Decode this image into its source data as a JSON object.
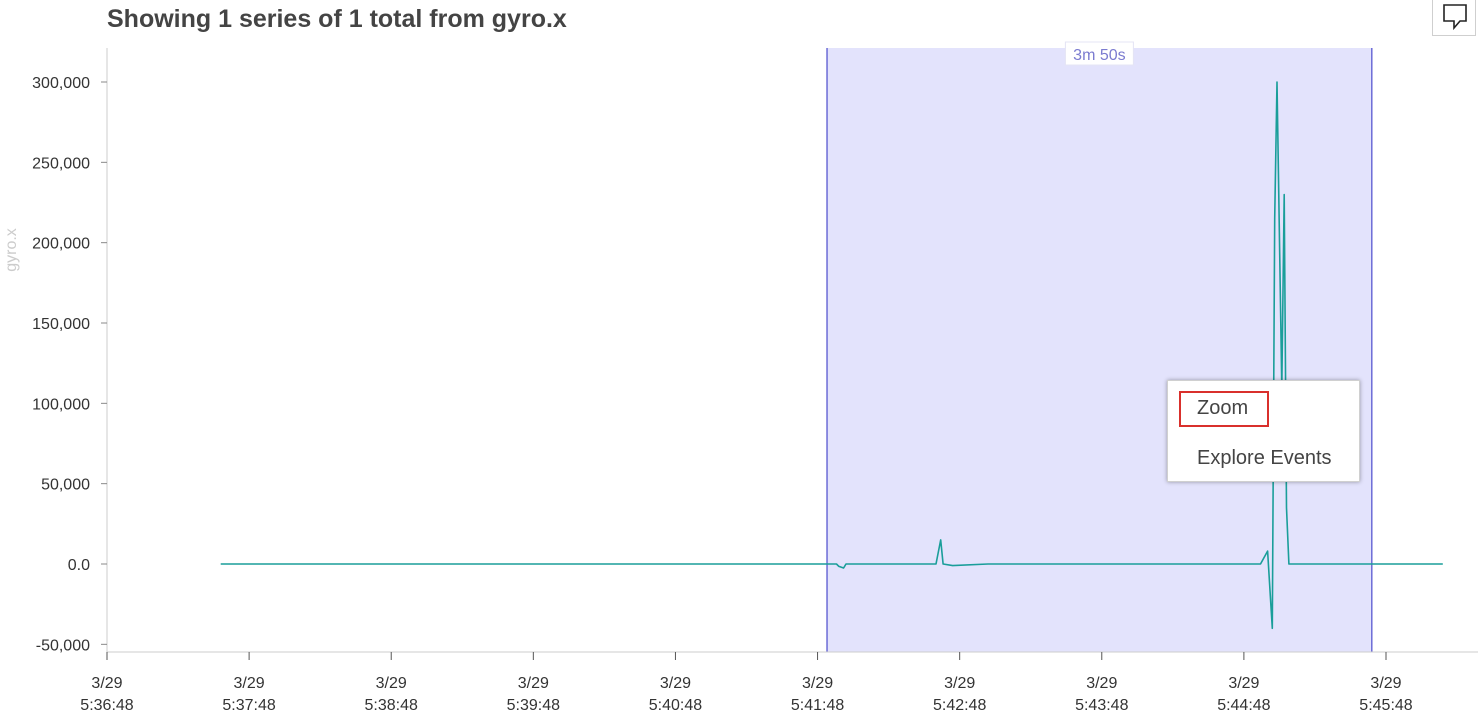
{
  "title": "Showing 1 series of 1 total from gyro.x",
  "icons": {
    "comment": "comment-icon"
  },
  "selection": {
    "label": "3m 50s",
    "start": "5:41:52",
    "end": "5:45:42"
  },
  "context_menu": {
    "items": [
      "Zoom",
      "Explore Events"
    ],
    "highlighted": "Zoom"
  },
  "colors": {
    "series": "#1a9e9a",
    "selection_fill": "#e3e3fc",
    "selection_border": "#6c6cd6",
    "highlight": "#d9302c"
  },
  "chart_data": {
    "type": "line",
    "title": "Showing 1 series of 1 total from gyro.x",
    "xlabel": "",
    "ylabel": "gyro.x",
    "ylim": [
      -55000,
      320000
    ],
    "yticks": [
      -50000,
      0,
      50000,
      100000,
      150000,
      200000,
      250000,
      300000
    ],
    "ytick_labels": [
      "-50,000",
      "0.0",
      "50,000",
      "100,000",
      "150,000",
      "200,000",
      "250,000",
      "300,000"
    ],
    "xlim": [
      "5:36:48",
      "5:46:28"
    ],
    "xticks": [
      "5:36:48",
      "5:37:48",
      "5:38:48",
      "5:39:48",
      "5:40:48",
      "5:41:48",
      "5:42:48",
      "5:43:48",
      "5:44:48",
      "5:45:48"
    ],
    "xtick_labels": [
      [
        "3/29",
        "5:36:48"
      ],
      [
        "3/29",
        "5:37:48"
      ],
      [
        "3/29",
        "5:38:48"
      ],
      [
        "3/29",
        "5:39:48"
      ],
      [
        "3/29",
        "5:40:48"
      ],
      [
        "3/29",
        "5:41:48"
      ],
      [
        "3/29",
        "5:42:48"
      ],
      [
        "3/29",
        "5:43:48"
      ],
      [
        "3/29",
        "5:44:48"
      ],
      [
        "3/29",
        "5:45:48"
      ]
    ],
    "grid": false,
    "series": [
      {
        "x": [
          "5:37:36",
          "5:38:00",
          "5:38:30",
          "5:39:00",
          "5:39:30",
          "5:40:00",
          "5:40:30",
          "5:41:00",
          "5:41:30",
          "5:41:56",
          "5:41:57",
          "5:41:59",
          "5:42:00",
          "5:42:30",
          "5:42:38",
          "5:42:40",
          "5:42:41",
          "5:42:45",
          "5:43:00",
          "5:43:30",
          "5:44:00",
          "5:44:30",
          "5:44:55",
          "5:44:58",
          "5:45:00",
          "5:45:01",
          "5:45:02",
          "5:45:04",
          "5:45:05",
          "5:45:06",
          "5:45:07",
          "5:45:08",
          "5:45:10",
          "5:45:30",
          "5:45:50",
          "5:46:12"
        ],
        "y": [
          0,
          0,
          0,
          0,
          0,
          0,
          0,
          0,
          0,
          0,
          -1500,
          -2500,
          0,
          0,
          0,
          15000,
          0,
          -1000,
          0,
          0,
          0,
          0,
          0,
          8000,
          -40000,
          215000,
          300000,
          110000,
          230000,
          35000,
          0,
          0,
          0,
          0,
          0,
          0
        ]
      }
    ]
  }
}
